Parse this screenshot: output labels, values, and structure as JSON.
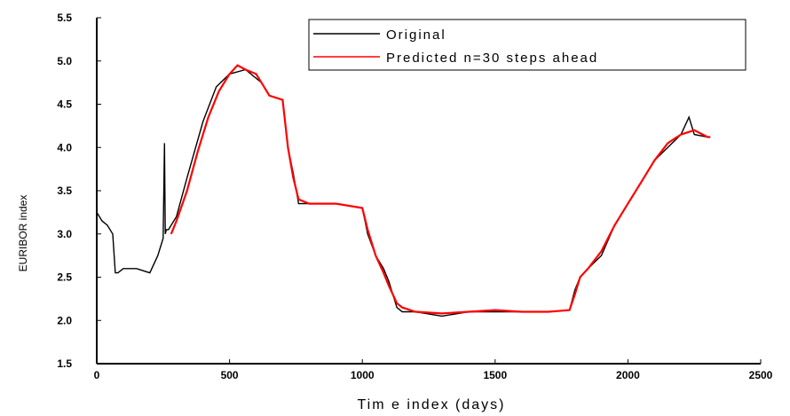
{
  "chart_data": {
    "type": "line",
    "xlabel": "Tim e index (days)",
    "ylabel": "EURIBOR index",
    "xlim": [
      0,
      2500
    ],
    "ylim": [
      1.5,
      5.5
    ],
    "x_ticks": [
      0,
      500,
      1000,
      1500,
      2000,
      2500
    ],
    "y_ticks": [
      "1.5",
      "2.0",
      "2.5",
      "3.0",
      "3.5",
      "4.0",
      "4.5",
      "5.0",
      "5.5"
    ],
    "grid": false,
    "legend_position": "top-right",
    "series": [
      {
        "name": "Original",
        "color": "#000000",
        "x": [
          0,
          20,
          40,
          60,
          70,
          80,
          100,
          150,
          200,
          230,
          250,
          255,
          258,
          262,
          270,
          300,
          340,
          400,
          450,
          500,
          560,
          620,
          650,
          700,
          720,
          740,
          760,
          800,
          900,
          1000,
          1020,
          1050,
          1080,
          1100,
          1130,
          1150,
          1200,
          1300,
          1400,
          1500,
          1600,
          1700,
          1780,
          1800,
          1820,
          1850,
          1900,
          1950,
          2000,
          2050,
          2100,
          2150,
          2200,
          2230,
          2250,
          2300,
          2310
        ],
        "y": [
          3.25,
          3.15,
          3.1,
          3.0,
          2.55,
          2.55,
          2.6,
          2.6,
          2.55,
          2.75,
          2.95,
          4.05,
          3.0,
          3.05,
          3.05,
          3.2,
          3.65,
          4.3,
          4.7,
          4.85,
          4.9,
          4.75,
          4.6,
          4.55,
          4.0,
          3.7,
          3.35,
          3.35,
          3.35,
          3.3,
          3.0,
          2.75,
          2.6,
          2.45,
          2.15,
          2.1,
          2.1,
          2.05,
          2.1,
          2.1,
          2.1,
          2.1,
          2.12,
          2.35,
          2.5,
          2.6,
          2.75,
          3.1,
          3.35,
          3.6,
          3.85,
          4.0,
          4.15,
          4.35,
          4.15,
          4.12,
          4.12
        ]
      },
      {
        "name": "Predicted n=30 steps ahead",
        "color": "#ff0000",
        "x": [
          280,
          300,
          340,
          380,
          420,
          460,
          500,
          530,
          560,
          600,
          620,
          650,
          700,
          720,
          740,
          760,
          800,
          900,
          1000,
          1020,
          1050,
          1080,
          1100,
          1130,
          1150,
          1200,
          1300,
          1400,
          1500,
          1600,
          1700,
          1780,
          1800,
          1820,
          1850,
          1900,
          1950,
          2000,
          2050,
          2100,
          2150,
          2200,
          2250,
          2300,
          2310
        ],
        "y": [
          3.0,
          3.15,
          3.5,
          3.95,
          4.35,
          4.65,
          4.85,
          4.95,
          4.9,
          4.85,
          4.75,
          4.6,
          4.55,
          4.0,
          3.65,
          3.4,
          3.35,
          3.35,
          3.3,
          3.05,
          2.75,
          2.55,
          2.4,
          2.2,
          2.15,
          2.1,
          2.08,
          2.1,
          2.12,
          2.1,
          2.1,
          2.12,
          2.3,
          2.5,
          2.6,
          2.8,
          3.1,
          3.35,
          3.6,
          3.85,
          4.05,
          4.15,
          4.2,
          4.12,
          4.12
        ]
      }
    ],
    "legend": [
      "Original",
      "Predicted n=30 steps ahead"
    ]
  }
}
